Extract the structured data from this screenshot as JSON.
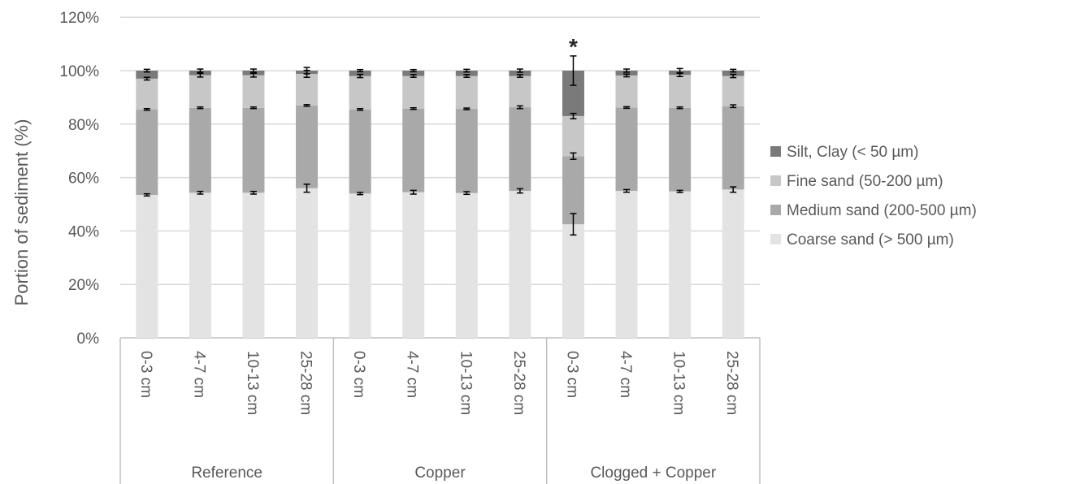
{
  "chart_data": {
    "type": "bar",
    "stacked": true,
    "ylabel": "Portion of sediment (%)",
    "ylim": [
      0,
      120
    ],
    "yticks": [
      "0%",
      "20%",
      "40%",
      "60%",
      "80%",
      "100%",
      "120%"
    ],
    "grid": true,
    "legend_position": "right",
    "groups": [
      {
        "name": "Reference",
        "categories": [
          "0-3 cm",
          "4-7 cm",
          "10-13 cm",
          "25-28 cm"
        ]
      },
      {
        "name": "Copper",
        "categories": [
          "0-3 cm",
          "4-7 cm",
          "10-13 cm",
          "25-28 cm"
        ]
      },
      {
        "name": "Clogged + Copper",
        "categories": [
          "0-3 cm",
          "4-7 cm",
          "10-13 cm",
          "25-28 cm"
        ]
      }
    ],
    "series": [
      {
        "name": "Coarse sand (> 500 µm)",
        "color": "#e3e3e3",
        "values": [
          53.5,
          54.3,
          54.3,
          56.0,
          54.0,
          54.5,
          54.2,
          55.0,
          42.5,
          55.0,
          54.8,
          55.5
        ],
        "errors": [
          0.4,
          0.5,
          0.5,
          1.5,
          0.4,
          0.7,
          0.5,
          0.8,
          4.0,
          0.5,
          0.4,
          1.0
        ]
      },
      {
        "name": "Medium sand (200-500 µm)",
        "color": "#a9a9a9",
        "values": [
          32.0,
          31.8,
          31.8,
          31.0,
          31.5,
          31.3,
          31.5,
          31.3,
          25.5,
          31.2,
          31.3,
          31.2
        ],
        "errors": [
          0.3,
          0.3,
          0.3,
          0.3,
          0.3,
          0.3,
          0.3,
          0.5,
          1.2,
          0.3,
          0.3,
          0.5
        ]
      },
      {
        "name": "Fine sand (50-200 µm)",
        "color": "#c7c7c7",
        "values": [
          11.5,
          12.2,
          12.2,
          11.8,
          12.5,
          12.2,
          12.3,
          11.7,
          15.0,
          12.0,
          12.3,
          11.3
        ],
        "errors": [
          0.5,
          0.7,
          0.7,
          1.3,
          0.6,
          0.5,
          0.5,
          0.5,
          1.0,
          0.5,
          0.6,
          0.6
        ]
      },
      {
        "name": "Silt, Clay (< 50 µm)",
        "color": "#7a7a7a",
        "values": [
          3.0,
          1.7,
          1.7,
          1.2,
          2.0,
          2.0,
          2.0,
          2.0,
          17.0,
          1.8,
          1.6,
          2.0
        ],
        "errors": [
          0.5,
          0.6,
          0.6,
          1.2,
          0.4,
          0.4,
          0.5,
          0.6,
          5.5,
          0.6,
          0.8,
          0.5
        ]
      }
    ],
    "annotations": [
      {
        "text": "*",
        "group": "Clogged + Copper",
        "category": "0-3 cm"
      }
    ]
  }
}
